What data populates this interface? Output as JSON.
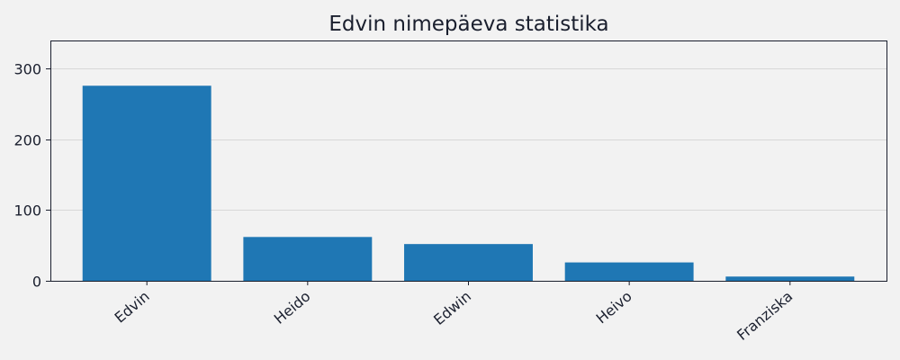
{
  "chart_data": {
    "type": "bar",
    "title": "Edvin nimepäeva statistika",
    "categories": [
      "Edvin",
      "Heido",
      "Edwin",
      "Heivo",
      "Franziska"
    ],
    "values": [
      276,
      62,
      52,
      26,
      6
    ],
    "xlabel": "",
    "ylabel": "",
    "ylim": [
      0,
      340
    ],
    "yticks": [
      0,
      100,
      200,
      300
    ],
    "grid": "horizontal",
    "legend": "none",
    "bar_color": "#1f77b4",
    "background_color": "#f2f2f2"
  }
}
